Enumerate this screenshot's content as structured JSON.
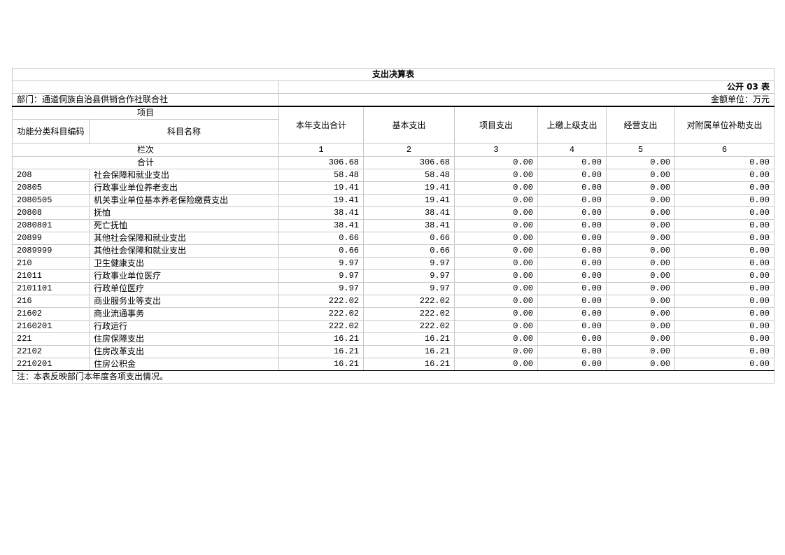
{
  "title": "支出决算表",
  "table_no": "公开 03 表",
  "department": "部门：通道侗族自治县供销合作社联合社",
  "unit": "金额单位：万元",
  "headers": {
    "item": "项目",
    "code": "功能分类科目编码",
    "name": "科目名称",
    "cols": [
      "本年支出合计",
      "基本支出",
      "项目支出",
      "上缴上级支出",
      "经营支出",
      "对附属单位补助支出"
    ],
    "row_label": "栏次",
    "col_nums": [
      "1",
      "2",
      "3",
      "4",
      "5",
      "6"
    ]
  },
  "total": {
    "label": "合计",
    "values": [
      "306.68",
      "306.68",
      "0.00",
      "0.00",
      "0.00",
      "0.00"
    ]
  },
  "rows": [
    {
      "code": "208",
      "name": "社会保障和就业支出",
      "values": [
        "58.48",
        "58.48",
        "0.00",
        "0.00",
        "0.00",
        "0.00"
      ]
    },
    {
      "code": "20805",
      "name": "行政事业单位养老支出",
      "values": [
        "19.41",
        "19.41",
        "0.00",
        "0.00",
        "0.00",
        "0.00"
      ]
    },
    {
      "code": "2080505",
      "name": "机关事业单位基本养老保险缴费支出",
      "values": [
        "19.41",
        "19.41",
        "0.00",
        "0.00",
        "0.00",
        "0.00"
      ]
    },
    {
      "code": "20808",
      "name": "抚恤",
      "values": [
        "38.41",
        "38.41",
        "0.00",
        "0.00",
        "0.00",
        "0.00"
      ]
    },
    {
      "code": "2080801",
      "name": "死亡抚恤",
      "values": [
        "38.41",
        "38.41",
        "0.00",
        "0.00",
        "0.00",
        "0.00"
      ]
    },
    {
      "code": "20899",
      "name": "其他社会保障和就业支出",
      "values": [
        "0.66",
        "0.66",
        "0.00",
        "0.00",
        "0.00",
        "0.00"
      ]
    },
    {
      "code": "2089999",
      "name": "其他社会保障和就业支出",
      "values": [
        "0.66",
        "0.66",
        "0.00",
        "0.00",
        "0.00",
        "0.00"
      ]
    },
    {
      "code": "210",
      "name": "卫生健康支出",
      "values": [
        "9.97",
        "9.97",
        "0.00",
        "0.00",
        "0.00",
        "0.00"
      ]
    },
    {
      "code": "21011",
      "name": "行政事业单位医疗",
      "values": [
        "9.97",
        "9.97",
        "0.00",
        "0.00",
        "0.00",
        "0.00"
      ]
    },
    {
      "code": "2101101",
      "name": "行政单位医疗",
      "values": [
        "9.97",
        "9.97",
        "0.00",
        "0.00",
        "0.00",
        "0.00"
      ]
    },
    {
      "code": "216",
      "name": "商业服务业等支出",
      "values": [
        "222.02",
        "222.02",
        "0.00",
        "0.00",
        "0.00",
        "0.00"
      ]
    },
    {
      "code": "21602",
      "name": "商业流通事务",
      "values": [
        "222.02",
        "222.02",
        "0.00",
        "0.00",
        "0.00",
        "0.00"
      ]
    },
    {
      "code": "2160201",
      "name": "行政运行",
      "values": [
        "222.02",
        "222.02",
        "0.00",
        "0.00",
        "0.00",
        "0.00"
      ]
    },
    {
      "code": "221",
      "name": "住房保障支出",
      "values": [
        "16.21",
        "16.21",
        "0.00",
        "0.00",
        "0.00",
        "0.00"
      ]
    },
    {
      "code": "22102",
      "name": "住房改革支出",
      "values": [
        "16.21",
        "16.21",
        "0.00",
        "0.00",
        "0.00",
        "0.00"
      ]
    },
    {
      "code": "2210201",
      "name": "住房公积金",
      "values": [
        "16.21",
        "16.21",
        "0.00",
        "0.00",
        "0.00",
        "0.00"
      ]
    }
  ],
  "note": "注：本表反映部门本年度各项支出情况。"
}
